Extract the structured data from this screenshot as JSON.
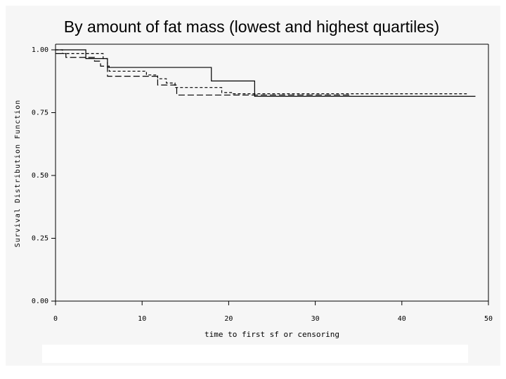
{
  "chart_data": {
    "type": "line",
    "step": true,
    "title": "By amount of fat mass (lowest and highest quartiles)",
    "xlabel": "time to first sf or censoring",
    "ylabel": "Survival Distribution Function",
    "xlim": [
      0,
      50
    ],
    "ylim": [
      0,
      1
    ],
    "xticks": [
      "0",
      "10",
      "20",
      "30",
      "40",
      "50"
    ],
    "yticks": [
      "0.00",
      "0.25",
      "0.50",
      "0.75",
      "1.00"
    ],
    "xtick_values": [
      0,
      10,
      20,
      30,
      40,
      50
    ],
    "ytick_values": [
      0,
      0.25,
      0.5,
      0.75,
      1.0
    ],
    "grid": false,
    "series": [
      {
        "style": "solid",
        "x": [
          0,
          3.5,
          6,
          18,
          23,
          48.5
        ],
        "y": [
          1.0,
          0.965,
          0.93,
          0.876,
          0.815,
          0.815
        ]
      },
      {
        "style": "short-dash",
        "x": [
          0,
          0.8,
          5.5,
          6,
          6.2,
          10.5,
          11.8,
          12.8,
          13.8,
          19.2,
          20.5,
          47.5
        ],
        "y": [
          1.0,
          0.985,
          0.965,
          0.935,
          0.915,
          0.9,
          0.885,
          0.868,
          0.85,
          0.83,
          0.825,
          0.825
        ]
      },
      {
        "style": "long-dash",
        "x": [
          0,
          1.2,
          4.5,
          5.2,
          6,
          11.8,
          14,
          34
        ],
        "y": [
          0.985,
          0.97,
          0.955,
          0.935,
          0.895,
          0.86,
          0.82,
          0.82
        ]
      }
    ]
  }
}
